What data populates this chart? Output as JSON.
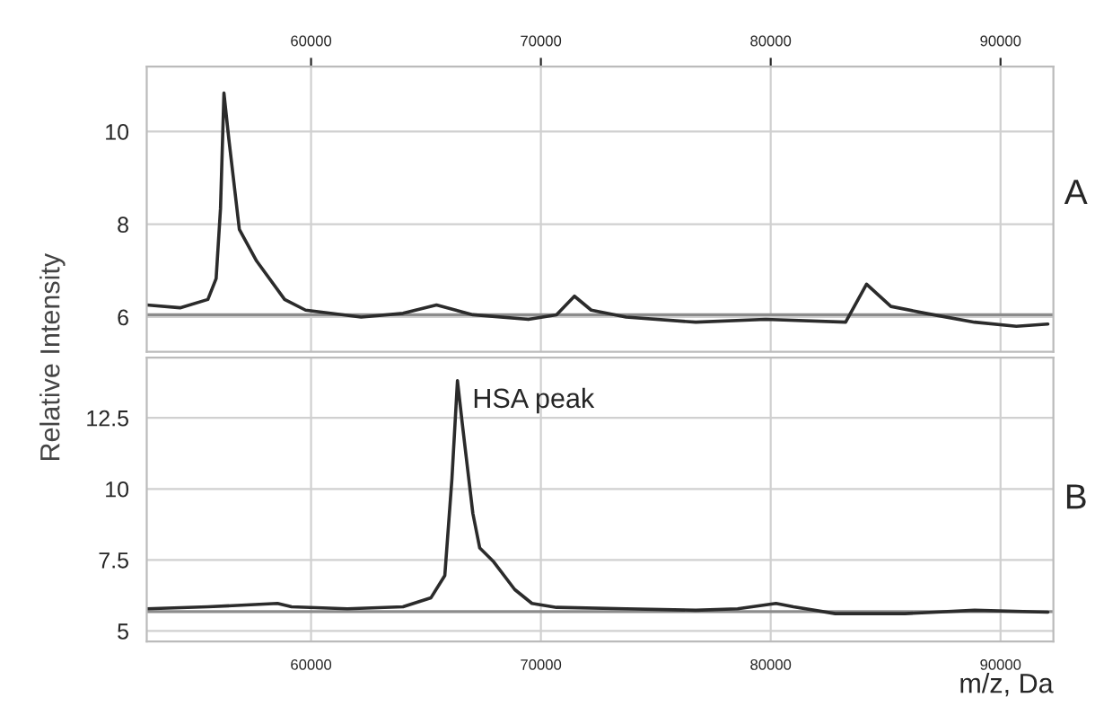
{
  "chart_data": [
    {
      "type": "line",
      "annotations": [
        "A"
      ],
      "xlim": [
        52850,
        92300
      ],
      "xticks": [
        60000,
        70000,
        80000,
        90000
      ],
      "ylim": [
        5.25,
        11.4
      ],
      "yticks": [
        6,
        8,
        10
      ],
      "grid": true,
      "tick_labels": "xy",
      "marker": "none",
      "line_style": "solid",
      "ref_lines": [
        {
          "axis": "y",
          "value": 6.05,
          "color": "#8c8c8c"
        }
      ],
      "series": [
        {
          "color": "#2b2b2b",
          "x": [
            52850,
            54300,
            55510,
            55870,
            56060,
            56210,
            56420,
            56880,
            57630,
            58850,
            59760,
            62180,
            64000,
            65460,
            67040,
            69460,
            70680,
            71460,
            72190,
            73710,
            76740,
            79780,
            83260,
            84170,
            85230,
            86750,
            88870,
            90690,
            92060
          ],
          "values": [
            6.26,
            6.2,
            6.38,
            6.83,
            8.34,
            10.83,
            9.85,
            7.89,
            7.21,
            6.38,
            6.15,
            6.0,
            6.08,
            6.26,
            6.05,
            5.95,
            6.05,
            6.45,
            6.15,
            6.0,
            5.89,
            5.95,
            5.89,
            6.71,
            6.23,
            6.08,
            5.89,
            5.8,
            5.85
          ]
        }
      ]
    },
    {
      "type": "line",
      "ylabel": "Relative Intensity",
      "xlabel": "m/z, Da",
      "annotations": [
        "B",
        {
          "text": "HSA peak",
          "x": 66370,
          "y": 13.81
        }
      ],
      "xlim": [
        52850,
        92300
      ],
      "xticks": [
        60000,
        70000,
        80000,
        90000
      ],
      "ylim": [
        4.63,
        14.62
      ],
      "yticks": [
        5,
        7.5,
        10,
        12.5
      ],
      "grid": true,
      "marker": "none",
      "line_style": "solid",
      "ref_lines": [
        {
          "axis": "y",
          "value": 5.68,
          "color": "#8c8c8c"
        }
      ],
      "series": [
        {
          "color": "#2b2b2b",
          "x": [
            52850,
            55510,
            58540,
            59150,
            61580,
            64000,
            65220,
            65820,
            66130,
            66370,
            66580,
            67040,
            67340,
            67950,
            68860,
            69610,
            70680,
            73710,
            76740,
            78560,
            80230,
            80990,
            82810,
            85840,
            88870,
            92060
          ],
          "values": [
            5.78,
            5.85,
            5.97,
            5.85,
            5.78,
            5.85,
            6.17,
            6.95,
            10.36,
            13.81,
            12.3,
            9.14,
            7.92,
            7.43,
            6.46,
            5.97,
            5.83,
            5.78,
            5.73,
            5.78,
            5.97,
            5.85,
            5.61,
            5.61,
            5.73,
            5.66
          ]
        }
      ]
    }
  ]
}
